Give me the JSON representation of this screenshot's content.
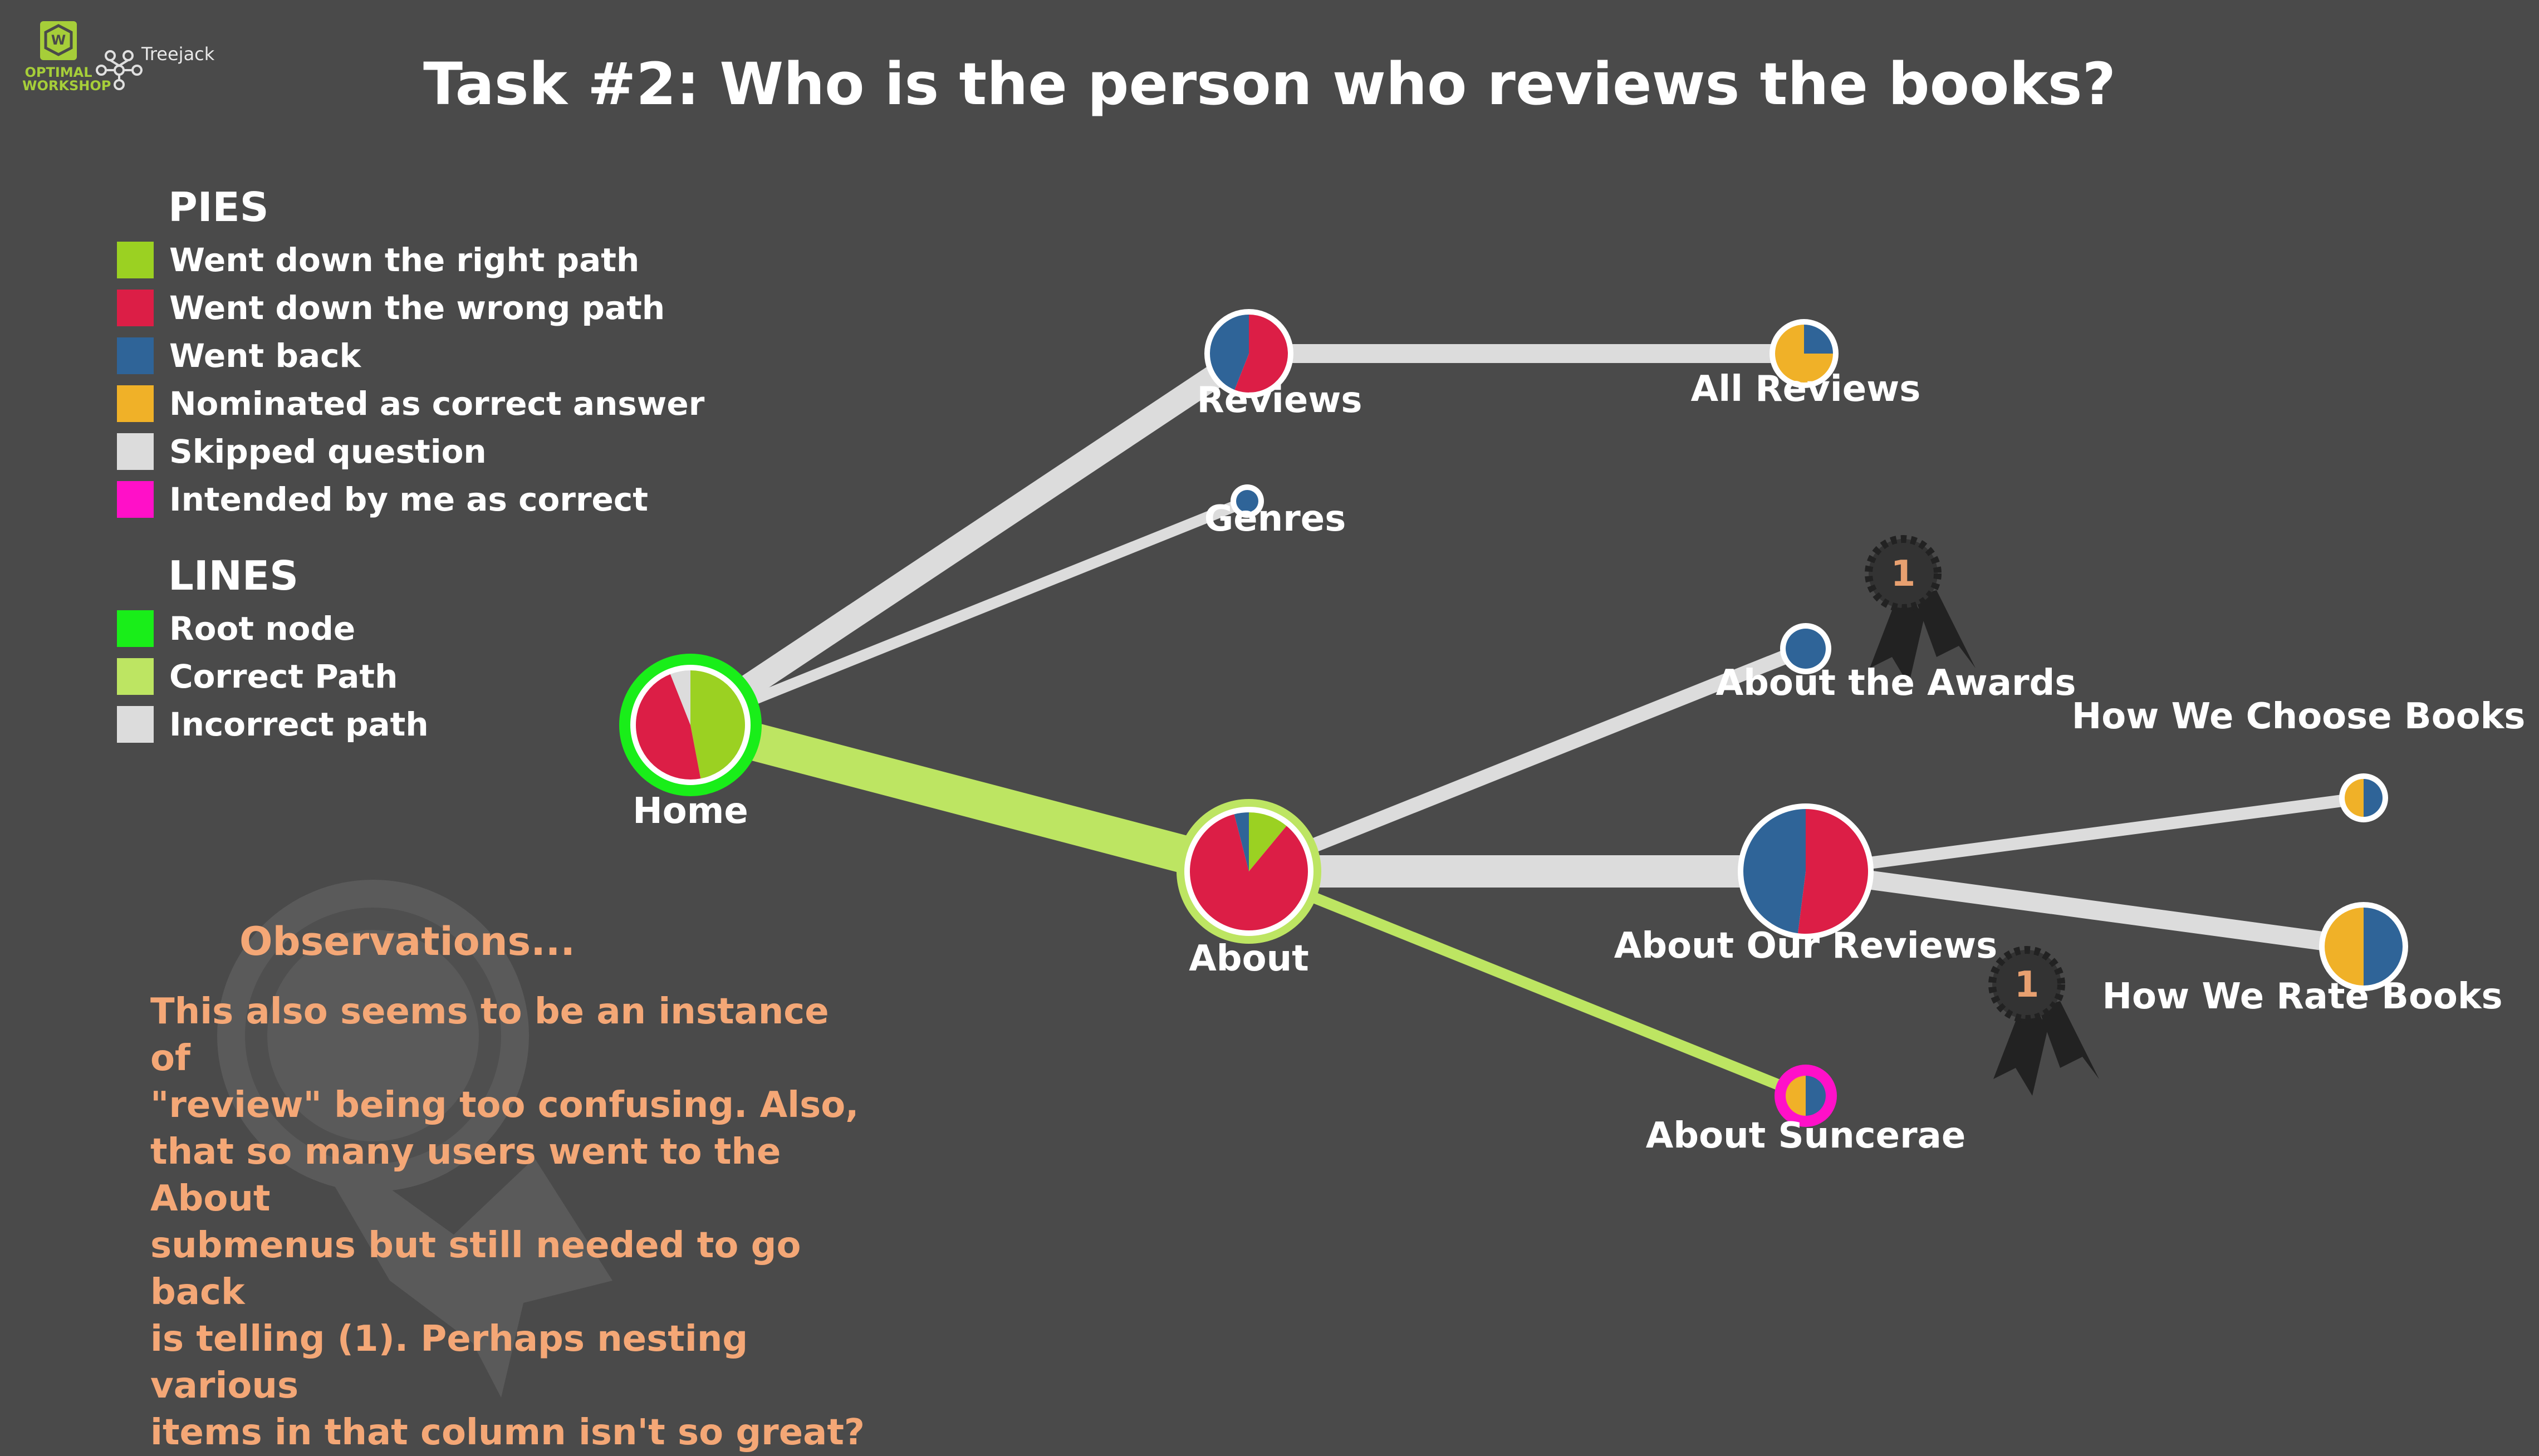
{
  "title": "Task #2: Who is the person who reviews the books?",
  "logo": {
    "brand_line1": "OPTIMAL",
    "brand_line2": "WORKSHOP",
    "product": "Treejack",
    "brand_color": "#a6ce39"
  },
  "legend": {
    "pies_heading": "PIES",
    "pies": [
      {
        "label": "Went down the right path",
        "color": "#9bd122"
      },
      {
        "label": "Went down the wrong path",
        "color": "#dc1e46"
      },
      {
        "label": "Went back",
        "color": "#2f6498"
      },
      {
        "label": "Nominated as correct answer",
        "color": "#f0b128"
      },
      {
        "label": "Skipped question",
        "color": "#dcdcdc"
      },
      {
        "label": "Intended by me as correct",
        "color": "#ff10c8"
      }
    ],
    "lines_heading": "LINES",
    "lines": [
      {
        "label": "Root node",
        "color": "#19ee19"
      },
      {
        "label": "Correct Path",
        "color": "#bde562"
      },
      {
        "label": "Incorrect path",
        "color": "#dcdcdc"
      }
    ]
  },
  "observations": {
    "title": "Observations...",
    "lines": [
      "This also seems to be an instance of",
      "\"review\" being too confusing. Also,",
      "that so many users went to the About",
      "submenus but still needed to go back",
      "is telling (1). Perhaps nesting various",
      "items in that column isn't so great?"
    ]
  },
  "badges": [
    {
      "id": "awards-badge",
      "text": "1"
    },
    {
      "id": "reviews-badge",
      "text": "1"
    }
  ],
  "colors": {
    "right": "#9bd122",
    "wrong": "#dc1e46",
    "back": "#2f6498",
    "nominated": "#f0b128",
    "skipped": "#dcdcdc",
    "intended": "#ff10c8",
    "root_ring": "#19ee19",
    "correct_line": "#bde562",
    "incorrect_line": "#dcdcdc",
    "background": "#4a4a4a",
    "observation_text": "#f4a776"
  },
  "nodes": [
    {
      "id": "home",
      "label": "Home",
      "ring": "root",
      "slices": [
        {
          "k": "right",
          "v": 0.47
        },
        {
          "k": "wrong",
          "v": 0.47
        },
        {
          "k": "skipped",
          "v": 0.06
        }
      ]
    },
    {
      "id": "reviews",
      "label": "Reviews",
      "ring": "none",
      "slices": [
        {
          "k": "wrong",
          "v": 0.56
        },
        {
          "k": "back",
          "v": 0.44
        }
      ]
    },
    {
      "id": "genres",
      "label": "Genres",
      "ring": "none",
      "slices": [
        {
          "k": "back",
          "v": 1.0
        }
      ]
    },
    {
      "id": "about",
      "label": "About",
      "ring": "correct",
      "slices": [
        {
          "k": "right",
          "v": 0.11
        },
        {
          "k": "wrong",
          "v": 0.85
        },
        {
          "k": "back",
          "v": 0.04
        }
      ]
    },
    {
      "id": "all-reviews",
      "label": "All Reviews",
      "ring": "none",
      "slices": [
        {
          "k": "back",
          "v": 0.25
        },
        {
          "k": "nominated",
          "v": 0.75
        }
      ]
    },
    {
      "id": "about-awards",
      "label": "About the Awards",
      "ring": "none",
      "slices": [
        {
          "k": "back",
          "v": 1.0
        }
      ]
    },
    {
      "id": "about-our-reviews",
      "label": "About Our Reviews",
      "ring": "none",
      "slices": [
        {
          "k": "wrong",
          "v": 0.52
        },
        {
          "k": "back",
          "v": 0.48
        }
      ]
    },
    {
      "id": "about-suncerae",
      "label": "About Suncerae",
      "ring": "intended",
      "slices": [
        {
          "k": "back",
          "v": 0.5
        },
        {
          "k": "nominated",
          "v": 0.5
        }
      ]
    },
    {
      "id": "how-we-choose",
      "label": "How We Choose Books",
      "ring": "none",
      "slices": [
        {
          "k": "back",
          "v": 0.5
        },
        {
          "k": "nominated",
          "v": 0.5
        }
      ]
    },
    {
      "id": "how-we-rate",
      "label": "How We Rate Books",
      "ring": "none",
      "slices": [
        {
          "k": "back",
          "v": 0.5
        },
        {
          "k": "nominated",
          "v": 0.5
        }
      ]
    }
  ],
  "edges": [
    {
      "from": "home",
      "to": "reviews",
      "type": "incorrect"
    },
    {
      "from": "home",
      "to": "genres",
      "type": "incorrect"
    },
    {
      "from": "home",
      "to": "about",
      "type": "correct"
    },
    {
      "from": "reviews",
      "to": "all-reviews",
      "type": "incorrect"
    },
    {
      "from": "about",
      "to": "about-awards",
      "type": "incorrect"
    },
    {
      "from": "about",
      "to": "about-our-reviews",
      "type": "incorrect"
    },
    {
      "from": "about",
      "to": "about-suncerae",
      "type": "correct"
    },
    {
      "from": "about-our-reviews",
      "to": "how-we-choose",
      "type": "incorrect"
    },
    {
      "from": "about-our-reviews",
      "to": "how-we-rate",
      "type": "incorrect"
    }
  ]
}
